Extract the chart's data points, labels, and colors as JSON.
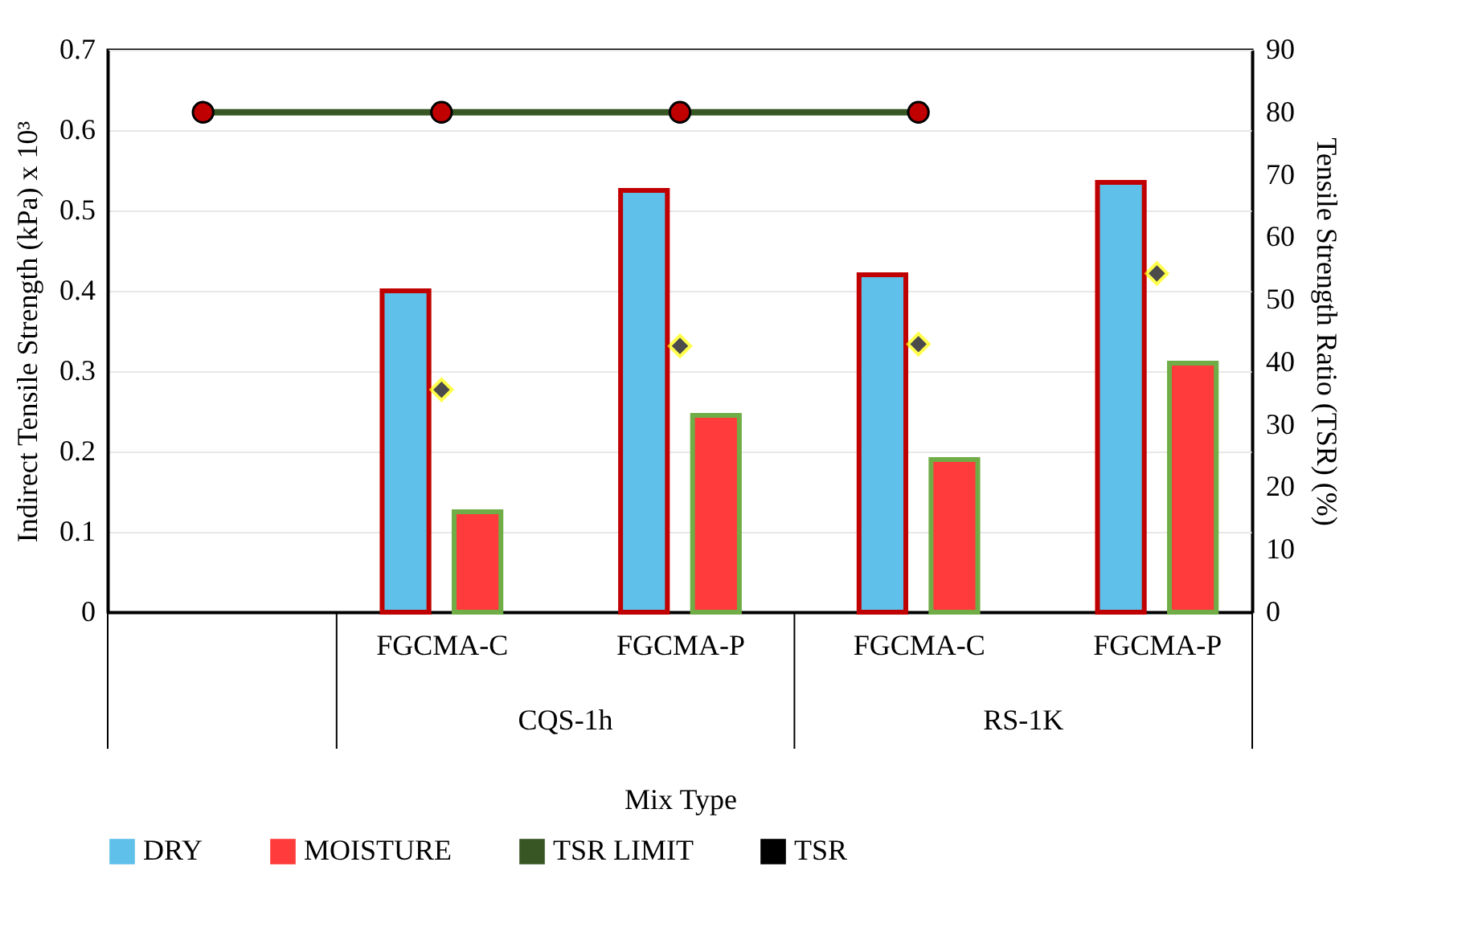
{
  "chart_data": {
    "type": "bar",
    "xlabel": "Mix Type",
    "ylabel": "Indirect Tensile Strength (kPa) x 10³",
    "y2label": "Tensile Strength Ratio (TSR) (%)",
    "categories": [
      null,
      "FGCMA-C",
      "FGCMA-P",
      "FGCMA-C",
      "FGCMA-P"
    ],
    "series": [
      {
        "name": "DRY",
        "color": "#5fc0ea",
        "values": [
          null,
          0.4,
          0.525,
          0.42,
          0.535
        ]
      },
      {
        "name": "MOISTURE",
        "color": "#ff3b3b",
        "values": [
          null,
          0.125,
          0.245,
          0.19,
          0.31
        ]
      },
      {
        "name": "TSR LIMIT",
        "type": "line",
        "axis": "y2",
        "color": "#375623",
        "marker": "circle",
        "values": [
          80,
          80,
          80,
          80,
          null
        ]
      },
      {
        "name": "TSR",
        "type": "scatter",
        "axis": "y2",
        "color": "#000000",
        "marker": "diamond",
        "values": [
          null,
          35.6,
          42.6,
          42.9,
          54.2
        ]
      }
    ],
    "annotations": [
      "CQS-1h",
      "RS-1K"
    ],
    "ylim": [
      0,
      0.7
    ],
    "yticks": [
      0,
      0.1,
      0.2,
      0.3,
      0.4,
      0.5,
      0.6,
      0.7
    ],
    "y2lim": [
      0,
      90
    ],
    "y2ticks": [
      0,
      10,
      20,
      30,
      40,
      50,
      60,
      70,
      80,
      90
    ],
    "grid": "y",
    "legend": "bottom"
  }
}
